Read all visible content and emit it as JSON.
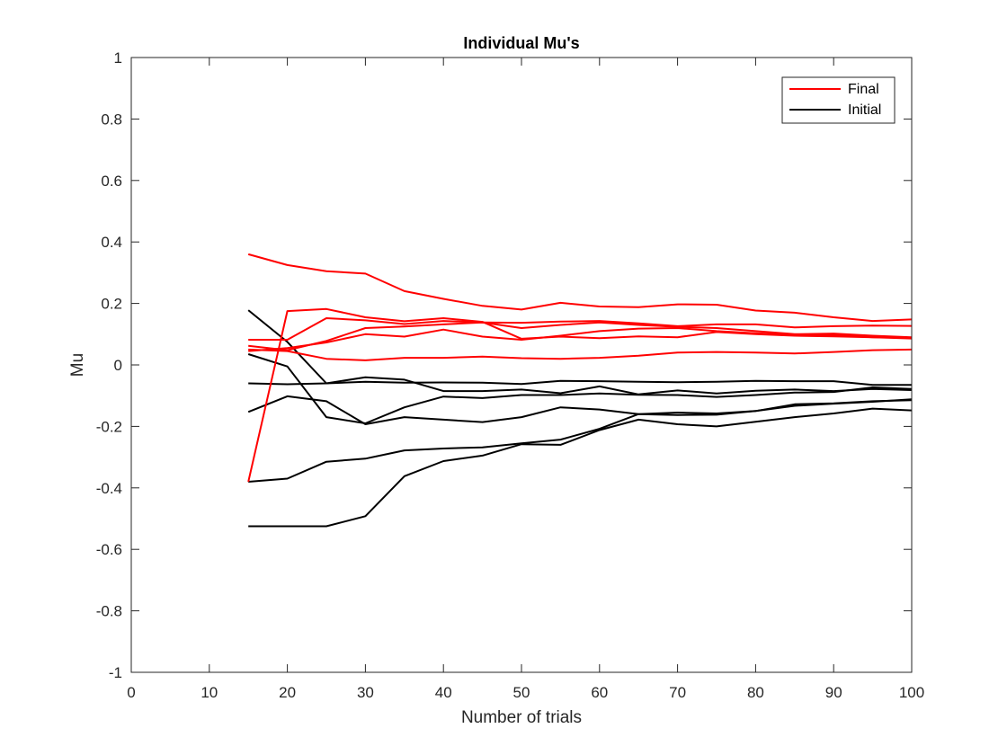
{
  "chart_data": {
    "type": "line",
    "title": "Individual Mu's",
    "xlabel": "Number of trials",
    "ylabel": "Mu",
    "xlim": [
      0,
      100
    ],
    "ylim": [
      -1,
      1
    ],
    "xticks": [
      0,
      10,
      20,
      30,
      40,
      50,
      60,
      70,
      80,
      90,
      100
    ],
    "yticks": [
      -1,
      -0.8,
      -0.6,
      -0.4,
      -0.2,
      0,
      0.2,
      0.4,
      0.6,
      0.8,
      1
    ],
    "xtick_labels": [
      "0",
      "10",
      "20",
      "30",
      "40",
      "50",
      "60",
      "70",
      "80",
      "90",
      "100"
    ],
    "ytick_labels": [
      "-1",
      "-0.8",
      "-0.6",
      "-0.4",
      "-0.2",
      "0",
      "0.2",
      "0.4",
      "0.6",
      "0.8",
      "1"
    ],
    "grid": false,
    "legend_position": "top-right",
    "legend": [
      {
        "name": "Final",
        "color": "#ff0000"
      },
      {
        "name": "Initial",
        "color": "#000000"
      }
    ],
    "x": [
      15,
      20,
      25,
      30,
      35,
      40,
      45,
      50,
      55,
      60,
      65,
      70,
      75,
      80,
      85,
      90,
      95,
      100
    ],
    "series": [
      {
        "group": "Final",
        "color": "#ff0000",
        "values": [
          0.36,
          0.325,
          0.305,
          0.297,
          0.24,
          0.215,
          0.192,
          0.18,
          0.202,
          0.19,
          0.188,
          0.197,
          0.196,
          0.177,
          0.17,
          0.155,
          0.143,
          0.148
        ]
      },
      {
        "group": "Final",
        "color": "#ff0000",
        "values": [
          0.082,
          0.082,
          0.152,
          0.145,
          0.133,
          0.143,
          0.138,
          0.12,
          0.13,
          0.138,
          0.13,
          0.124,
          0.12,
          0.11,
          0.1,
          0.102,
          0.095,
          0.09
        ]
      },
      {
        "group": "Final",
        "color": "#ff0000",
        "values": [
          0.062,
          0.048,
          0.078,
          0.12,
          0.125,
          0.132,
          0.138,
          0.137,
          0.141,
          0.143,
          0.135,
          0.126,
          0.132,
          0.132,
          0.122,
          0.126,
          0.128,
          0.127
        ]
      },
      {
        "group": "Final",
        "color": "#ff0000",
        "values": [
          0.045,
          0.055,
          0.073,
          0.1,
          0.092,
          0.115,
          0.092,
          0.082,
          0.095,
          0.11,
          0.118,
          0.12,
          0.11,
          0.103,
          0.098,
          0.097,
          0.09,
          0.086
        ]
      },
      {
        "group": "Final",
        "color": "#ff0000",
        "values": [
          0.05,
          0.045,
          0.02,
          0.015,
          0.023,
          0.023,
          0.027,
          0.022,
          0.02,
          0.023,
          0.03,
          0.04,
          0.042,
          0.04,
          0.037,
          0.042,
          0.048,
          0.05
        ]
      },
      {
        "group": "Final",
        "color": "#ff0000",
        "values": [
          -0.38,
          0.175,
          0.182,
          0.155,
          0.142,
          0.152,
          0.14,
          0.085,
          0.092,
          0.087,
          0.093,
          0.09,
          0.107,
          0.1,
          0.095,
          0.093,
          0.09,
          0.088
        ]
      },
      {
        "group": "Initial",
        "color": "#000000",
        "values": [
          0.178,
          0.075,
          -0.06,
          -0.055,
          -0.058,
          -0.057,
          -0.058,
          -0.062,
          -0.052,
          -0.053,
          -0.055,
          -0.056,
          -0.055,
          -0.052,
          -0.053,
          -0.053,
          -0.065,
          -0.065
        ]
      },
      {
        "group": "Initial",
        "color": "#000000",
        "values": [
          0.035,
          -0.005,
          -0.17,
          -0.19,
          -0.138,
          -0.103,
          -0.108,
          -0.098,
          -0.098,
          -0.093,
          -0.097,
          -0.098,
          -0.104,
          -0.098,
          -0.09,
          -0.088,
          -0.073,
          -0.078
        ]
      },
      {
        "group": "Initial",
        "color": "#000000",
        "values": [
          -0.06,
          -0.063,
          -0.06,
          -0.04,
          -0.048,
          -0.085,
          -0.085,
          -0.08,
          -0.092,
          -0.07,
          -0.096,
          -0.083,
          -0.093,
          -0.084,
          -0.08,
          -0.085,
          -0.078,
          -0.082
        ]
      },
      {
        "group": "Initial",
        "color": "#000000",
        "values": [
          -0.153,
          -0.102,
          -0.118,
          -0.193,
          -0.17,
          -0.178,
          -0.186,
          -0.17,
          -0.138,
          -0.145,
          -0.16,
          -0.163,
          -0.162,
          -0.15,
          -0.128,
          -0.125,
          -0.118,
          -0.115
        ]
      },
      {
        "group": "Initial",
        "color": "#000000",
        "values": [
          -0.38,
          -0.37,
          -0.315,
          -0.305,
          -0.278,
          -0.272,
          -0.268,
          -0.255,
          -0.243,
          -0.208,
          -0.16,
          -0.155,
          -0.158,
          -0.15,
          -0.133,
          -0.126,
          -0.12,
          -0.112
        ]
      },
      {
        "group": "Initial",
        "color": "#000000",
        "values": [
          -0.525,
          -0.525,
          -0.525,
          -0.492,
          -0.362,
          -0.313,
          -0.295,
          -0.258,
          -0.26,
          -0.212,
          -0.178,
          -0.193,
          -0.2,
          -0.185,
          -0.17,
          -0.158,
          -0.142,
          -0.148
        ]
      }
    ]
  }
}
